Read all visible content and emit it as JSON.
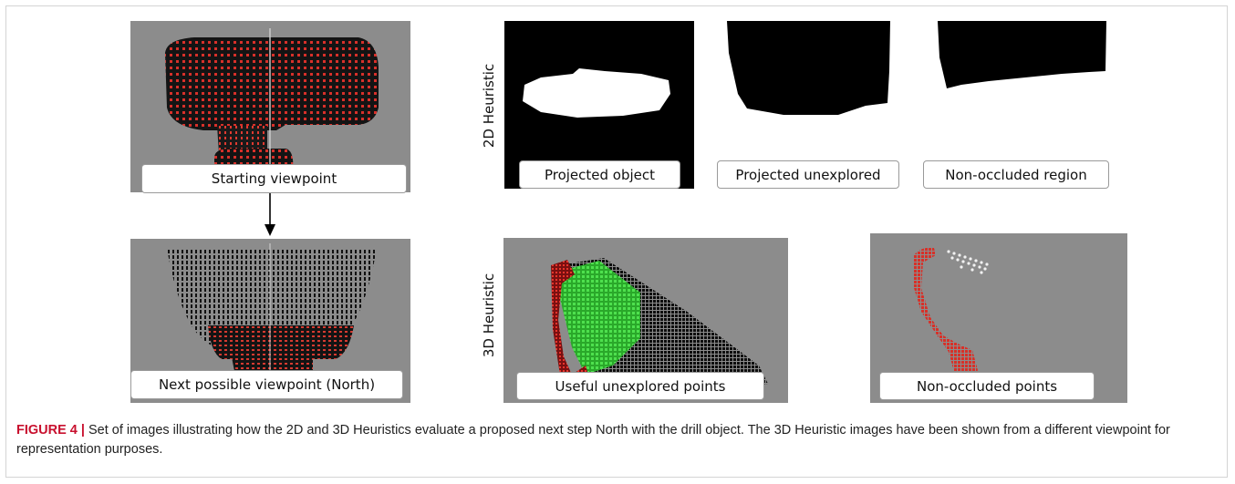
{
  "figure": {
    "label": "FIGURE 4 |",
    "caption": "Set of images illustrating how the 2D and 3D Heuristics evaluate a proposed next step North with the drill object. The 3D Heuristic images have been shown from a different viewpoint for representation purposes."
  },
  "left_column": {
    "top_caption": "Starting viewpoint",
    "bottom_caption": "Next possible viewpoint (North)"
  },
  "heuristic_2d": {
    "row_label": "2D Heuristic",
    "captions": [
      "Projected object",
      "Projected unexplored",
      "Non-occluded region"
    ]
  },
  "heuristic_3d": {
    "row_label": "3D Heuristic",
    "captions": [
      "Useful unexplored points",
      "Non-occluded points"
    ]
  },
  "colors": {
    "panel_gray": "#8c8c8c",
    "points_red": "#e0302a",
    "points_green": "#3cd43c",
    "caption_label": "#c8102e"
  }
}
